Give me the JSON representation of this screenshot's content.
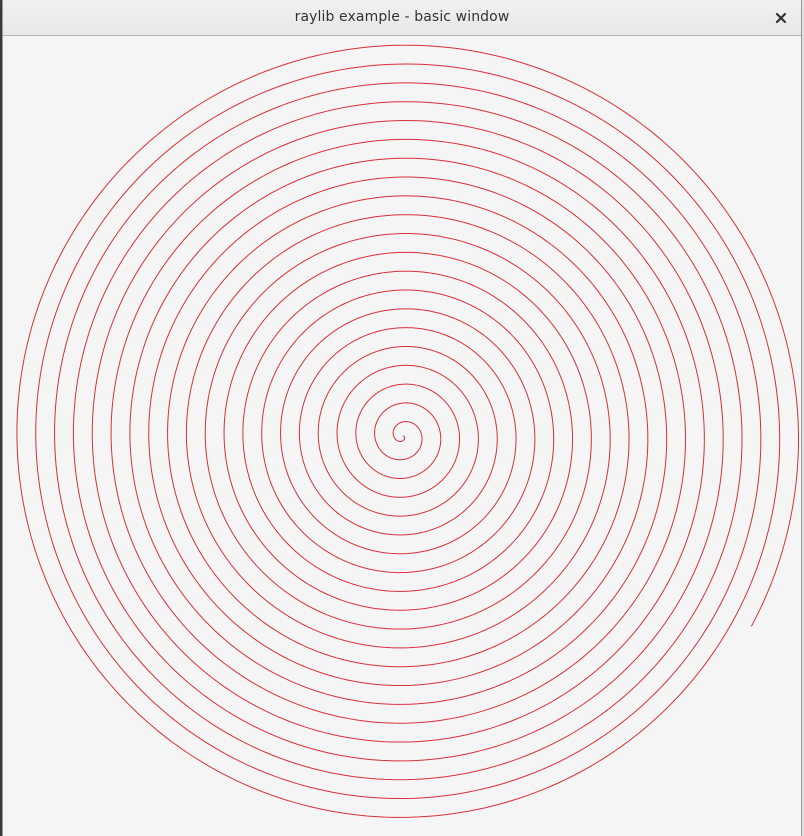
{
  "window": {
    "title": "raylib example - basic window"
  },
  "icons": {
    "close": "close-icon"
  },
  "colors": {
    "background": "#f5f5f5",
    "spiral": "#d9303a",
    "titlebar": "#efeeed",
    "title_text": "#2e3436"
  },
  "spiral": {
    "turns": 21
  }
}
